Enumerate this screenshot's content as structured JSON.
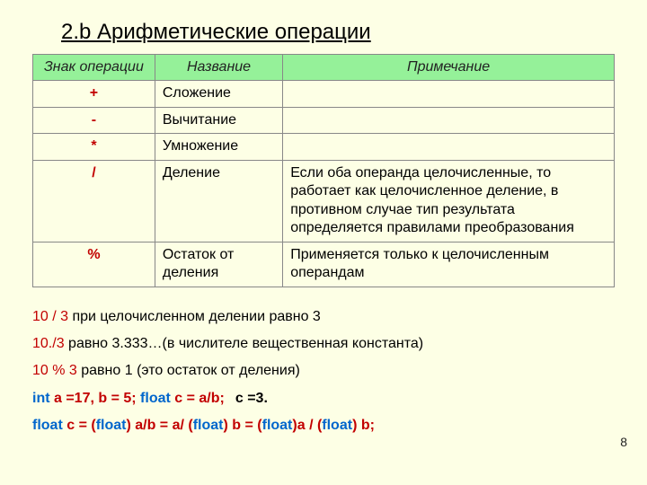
{
  "title": "2.b Арифметические операции",
  "table": {
    "headers": [
      "Знак операции",
      "Название",
      "Примечание"
    ],
    "rows": [
      {
        "sign": "+",
        "name": "Сложение",
        "note": ""
      },
      {
        "sign": "-",
        "name": "Вычитание",
        "note": ""
      },
      {
        "sign": "*",
        "name": "Умножение",
        "note": ""
      },
      {
        "sign": "/",
        "name": "Деление",
        "note": "Если оба операнда целочисленные, то работает  как целочисленное деление, в противном случае тип результата определяется правилами преобразования"
      },
      {
        "sign": "%",
        "name": "Остаток от деления",
        "note": "Применяется только к целочисленным операндам"
      }
    ],
    "style": {
      "header_bg": "#95f199",
      "border_color": "#888888",
      "sign_color": "#c20000",
      "body_bg": "#fdffe5",
      "fontsize_cell": 16,
      "fontsize_sign": 21,
      "col_widths_pct": [
        21,
        22,
        57
      ]
    }
  },
  "lines": {
    "l1a": "10 / 3",
    "l1b": "  при целочисленном делении равно 3",
    "l2a": "10./3",
    "l2b": "  равно 3.333…(в числителе вещественная константа)",
    "l3a": "10 % 3",
    "l3b": "  равно 1  (это остаток от деления)",
    "l4_int": "int",
    "l4_mid": " a =17, b = 5; ",
    "l4_float": "float",
    "l4_end": " c = a/b;",
    "l4_note": "c =3.",
    "l5_float": "float",
    "l5_mid1": " c = (",
    "l5_f2": "float",
    "l5_mid2": ") a/b = a/ (",
    "l5_f3": "float",
    "l5_mid3": ") b = (",
    "l5_f4": "float",
    "l5_mid4": ")a / (",
    "l5_f5": "float",
    "l5_mid5": ") b;"
  },
  "page_number": "8",
  "colors": {
    "background": "#fdffe5",
    "text_red": "#c20000",
    "text_blue": "#0066cc",
    "text_black": "#000000"
  }
}
